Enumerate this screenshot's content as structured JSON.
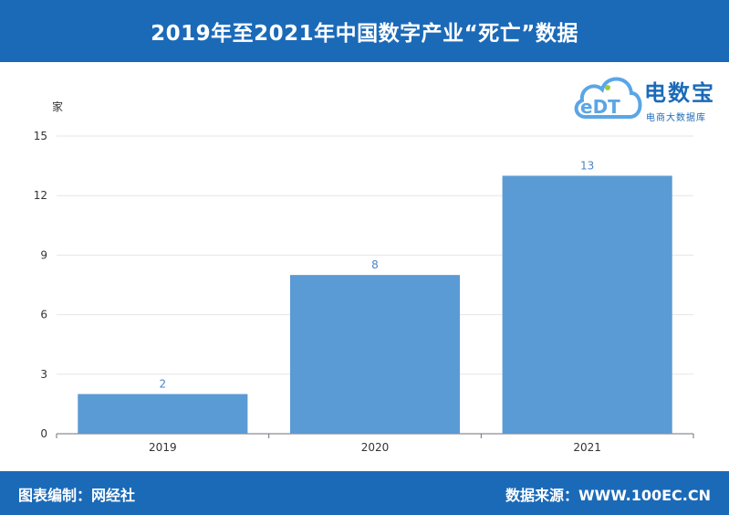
{
  "header": {
    "title": "2019年至2021年中国数字产业“死亡”数据"
  },
  "logo": {
    "mark_text": "eDT",
    "name": "电数宝",
    "subtitle": "电商大数据库",
    "colors": {
      "cloud": "#5aa6e6",
      "brand": "#1b6ab8",
      "accent": "#9ccc3c"
    }
  },
  "footer": {
    "left": "图表编制：网经社",
    "right": "数据来源：WWW.100EC.CN"
  },
  "colors": {
    "bar_bar": "#1b6ab8",
    "bar_fill": "#5b9bd5",
    "data_label": "#4a86c5"
  },
  "chart_data": {
    "type": "bar",
    "categories": [
      "2019",
      "2020",
      "2021"
    ],
    "values": [
      2,
      8,
      13
    ],
    "ylabel": "家",
    "ylim": [
      0,
      15
    ],
    "yticks": [
      0,
      3,
      6,
      9,
      12,
      15
    ],
    "grid": true,
    "data_labels": true
  }
}
